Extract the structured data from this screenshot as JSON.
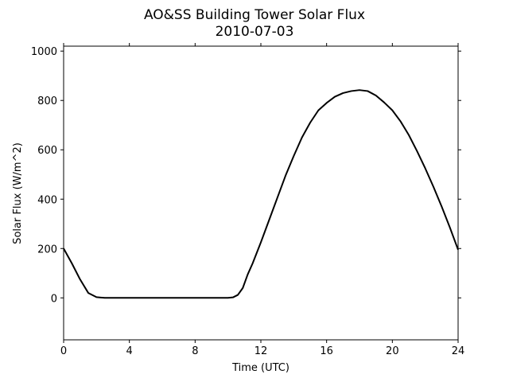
{
  "chart_data": {
    "type": "line",
    "title": "AO&SS Building Tower Solar Flux",
    "subtitle": "2010-07-03",
    "xlabel": "Time (UTC)",
    "ylabel": "Solar Flux (W/m^2)",
    "xlim": [
      0,
      24
    ],
    "ylim": [
      -170,
      1020
    ],
    "x_ticks": [
      0,
      4,
      8,
      12,
      16,
      20,
      24
    ],
    "y_ticks": [
      0,
      200,
      400,
      600,
      800,
      1000
    ],
    "grid": false,
    "legend": "none",
    "line_color": "#000000",
    "series": [
      {
        "x": [
          0,
          0.5,
          1.0,
          1.5,
          2.0,
          2.5,
          3,
          4,
          5,
          6,
          7,
          8,
          9,
          10,
          10.3,
          10.6,
          10.9,
          11.2,
          11.5,
          12,
          12.5,
          13,
          13.5,
          14,
          14.5,
          15,
          15.5,
          16,
          16.5,
          17,
          17.5,
          18,
          18.5,
          19,
          19.5,
          20,
          20.5,
          21,
          21.5,
          22,
          22.5,
          23,
          23.5,
          24
        ],
        "y": [
          200,
          140,
          75,
          20,
          3,
          0,
          0,
          0,
          0,
          0,
          0,
          0,
          0,
          0,
          2,
          12,
          40,
          95,
          140,
          225,
          315,
          405,
          495,
          575,
          650,
          710,
          760,
          790,
          815,
          830,
          838,
          842,
          838,
          820,
          792,
          760,
          715,
          660,
          595,
          525,
          450,
          370,
          285,
          195
        ]
      }
    ]
  }
}
